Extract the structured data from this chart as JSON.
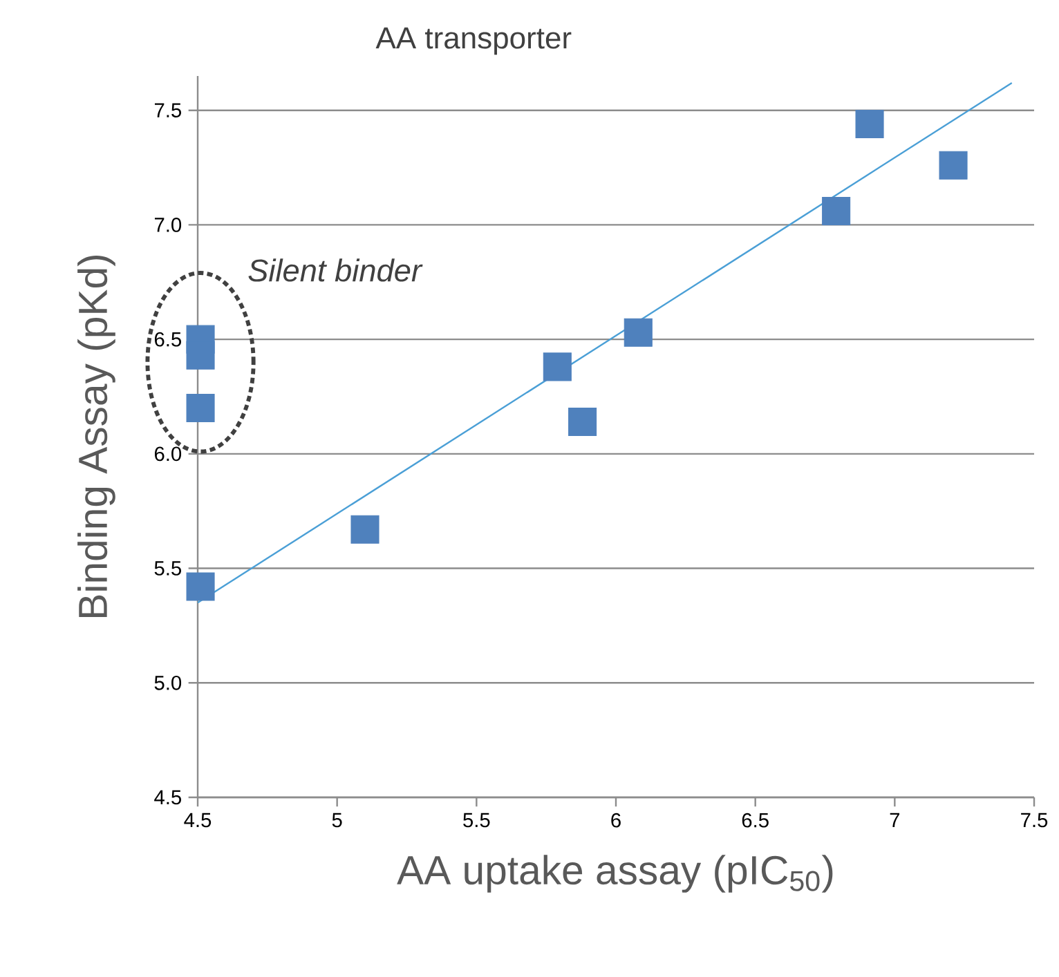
{
  "chart_data": {
    "type": "scatter",
    "title": "AA transporter",
    "xlabel": "AA uptake assay (pIC$_{50}$)",
    "ylabel": "Binding Assay (pKd)",
    "xlim": [
      4.5,
      7.5
    ],
    "ylim": [
      4.5,
      7.65
    ],
    "xticks": [
      4.5,
      5,
      5.5,
      6,
      6.5,
      7,
      7.5
    ],
    "yticks": [
      4.5,
      {
        "value": 5,
        "label": "5.0"
      },
      5.5,
      {
        "value": 6,
        "label": "6.0"
      },
      6.5,
      {
        "value": 7,
        "label": "7.0"
      },
      7.5
    ],
    "grid": "y",
    "series": [
      {
        "marker": "square",
        "color": "#4f81bd",
        "x": [
          4.51,
          4.51,
          4.51,
          4.51,
          5.1,
          5.79,
          5.88,
          6.08,
          6.79,
          6.91,
          7.21
        ],
        "values": [
          6.5,
          6.43,
          6.2,
          5.42,
          5.67,
          6.38,
          6.14,
          6.53,
          7.06,
          7.44,
          7.26
        ]
      },
      {
        "type": "line",
        "marker": "none",
        "color": "#4a9fd6",
        "x": [
          4.5,
          7.42
        ],
        "values": [
          5.35,
          7.62
        ]
      }
    ],
    "annotations": [
      {
        "text": "Silent binder",
        "x": 4.51,
        "y": 6.4
      }
    ]
  }
}
